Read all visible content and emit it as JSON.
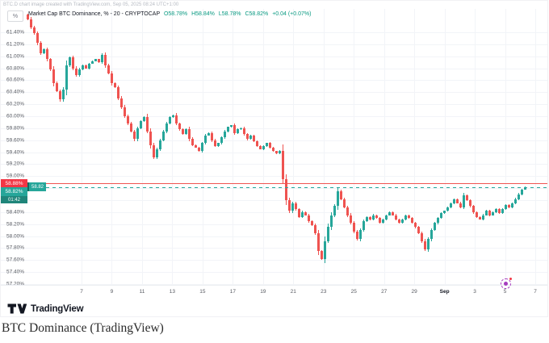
{
  "watermark": "BTC.D chart image created with TradingView.com, Sep 05, 2025 08:24 UTC+1:00",
  "legend": {
    "title": "Market Cap BTC Dominance, % - 20 - CRYPTOCAP",
    "open_label": "O58.78%",
    "high_label": "H58.84%",
    "low_label": "L58.78%",
    "close_label": "C58.82%",
    "change_label": "+0.04 (+0.07%)",
    "value_color": "#089981"
  },
  "price_scale": {
    "unit_button": "%",
    "labels": [
      "61.40%",
      "61.20%",
      "61.00%",
      "60.80%",
      "60.60%",
      "60.40%",
      "60.20%",
      "60.00%",
      "59.80%",
      "59.60%",
      "59.40%",
      "59.20%",
      "59.00%",
      "58.80%",
      "58.60%",
      "58.40%",
      "58.20%",
      "58.00%",
      "57.80%",
      "57.60%",
      "57.40%",
      "57.20%"
    ],
    "red_line_label": "58.88%",
    "last_price_label": "58.82%",
    "countdown": "01:42",
    "inline_price_tag": "58.82"
  },
  "time_scale": {
    "labels": [
      "7",
      "9",
      "11",
      "13",
      "15",
      "17",
      "19",
      "21",
      "23",
      "25",
      "27",
      "29",
      "Sep",
      "3",
      "5",
      "7"
    ],
    "month_label": "Sep"
  },
  "chart_data": {
    "type": "candlestick",
    "title": "Market Cap BTC Dominance, % - 20 - CRYPTOCAP",
    "ohlc_last": {
      "open": 58.78,
      "high": 58.84,
      "low": 58.78,
      "close": 58.82,
      "change": 0.04,
      "change_pct": 0.07
    },
    "y_axis": {
      "max_label": 61.4,
      "min_label": 57.2,
      "tick_step": 0.2,
      "unit": "%"
    },
    "x_axis_labels": [
      "7",
      "9",
      "11",
      "13",
      "15",
      "17",
      "19",
      "21",
      "23",
      "25",
      "27",
      "29",
      "Sep",
      "3",
      "5",
      "7"
    ],
    "red_line_price": 58.88,
    "last_price": 58.82,
    "first_open": 61.7,
    "up_color": "#26a69a",
    "down_color": "#ef5350",
    "closes": [
      61.62,
      61.48,
      61.38,
      61.22,
      61.05,
      61.12,
      60.95,
      60.78,
      60.55,
      60.42,
      60.28,
      60.45,
      60.85,
      60.98,
      60.8,
      60.68,
      60.78,
      60.85,
      60.8,
      60.88,
      60.92,
      60.95,
      60.9,
      61.02,
      60.85,
      60.72,
      60.55,
      60.48,
      60.3,
      60.15,
      60.0,
      59.88,
      59.75,
      59.62,
      59.8,
      59.92,
      59.98,
      59.75,
      59.52,
      59.32,
      59.45,
      59.6,
      59.75,
      59.88,
      59.98,
      60.02,
      59.88,
      59.78,
      59.7,
      59.78,
      59.62,
      59.52,
      59.48,
      59.42,
      59.55,
      59.68,
      59.72,
      59.6,
      59.5,
      59.55,
      59.65,
      59.75,
      59.82,
      59.85,
      59.72,
      59.78,
      59.8,
      59.7,
      59.62,
      59.68,
      59.58,
      59.5,
      59.45,
      59.5,
      59.55,
      59.48,
      59.42,
      59.38,
      59.42,
      58.95,
      58.6,
      58.42,
      58.55,
      58.45,
      58.32,
      58.4,
      58.35,
      58.25,
      58.18,
      58.05,
      57.75,
      57.62,
      57.92,
      58.15,
      58.35,
      58.5,
      58.75,
      58.62,
      58.48,
      58.35,
      58.22,
      58.08,
      57.95,
      58.1,
      58.25,
      58.32,
      58.28,
      58.35,
      58.3,
      58.22,
      58.28,
      58.35,
      58.4,
      58.35,
      58.28,
      58.22,
      58.28,
      58.35,
      58.3,
      58.22,
      58.15,
      58.05,
      57.92,
      57.78,
      57.95,
      58.1,
      58.22,
      58.3,
      58.38,
      58.42,
      58.48,
      58.55,
      58.62,
      58.55,
      58.48,
      58.68,
      58.6,
      58.5,
      58.4,
      58.32,
      58.28,
      58.35,
      58.42,
      58.35,
      58.4,
      58.45,
      58.38,
      58.45,
      58.52,
      58.48,
      58.55,
      58.62,
      58.7,
      58.78,
      58.82
    ]
  },
  "footer": {
    "logo_text": "TradingView"
  },
  "caption": "BTC Dominance (TradingView)"
}
